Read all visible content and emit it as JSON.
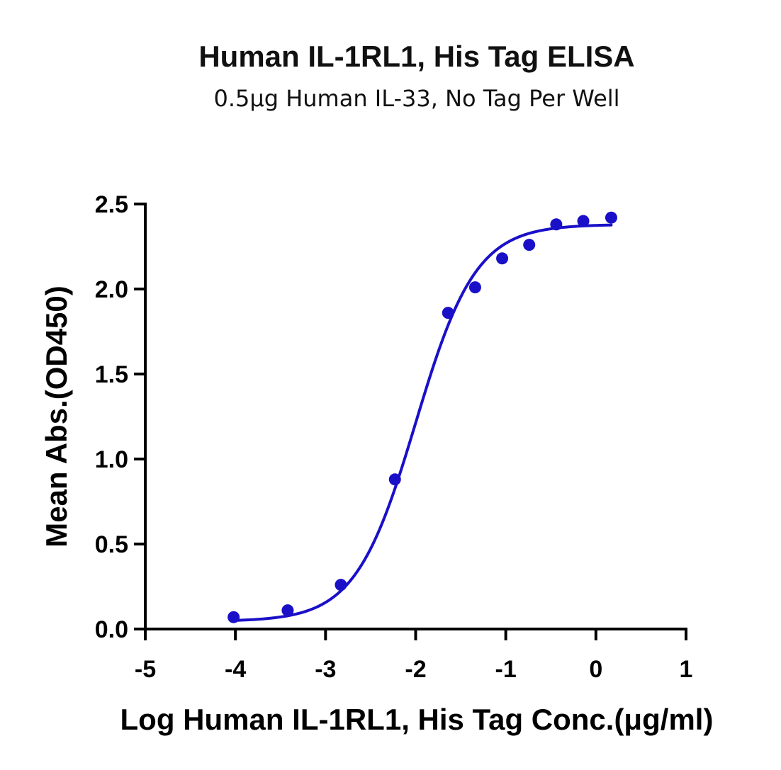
{
  "chart_data": {
    "type": "scatter",
    "title": "Human IL-1RL1, His Tag ELISA",
    "subtitle": "0.5μg Human IL-33, No Tag Per Well",
    "xlabel": "Log Human IL-1RL1, His Tag Conc.(μg/ml)",
    "ylabel": "Mean Abs.(OD450)",
    "xlim": [
      -5,
      1
    ],
    "ylim": [
      0,
      2.5
    ],
    "x_ticks": [
      -5,
      -4,
      -3,
      -2,
      -1,
      0,
      1
    ],
    "x_tick_labels": [
      "-5",
      "-4",
      "-3",
      "-2",
      "-1",
      "0",
      "1"
    ],
    "y_ticks": [
      0,
      0.5,
      1.0,
      1.5,
      2.0,
      2.5
    ],
    "y_tick_labels": [
      "0.0",
      "0.5",
      "1.0",
      "1.5",
      "2.0",
      "2.5"
    ],
    "grid": false,
    "legend": "none",
    "series": [
      {
        "x": [
          -4.02,
          -3.42,
          -2.83,
          -2.23,
          -1.64,
          -1.34,
          -1.04,
          -0.74,
          -0.44,
          -0.14,
          0.17
        ],
        "y": [
          0.07,
          0.11,
          0.26,
          0.88,
          1.86,
          2.01,
          2.18,
          2.26,
          2.38,
          2.4,
          2.42
        ],
        "color": "#1a10c8"
      }
    ],
    "fit_curve": {
      "model": "4PL",
      "bottom": 0.045,
      "top": 2.38,
      "log_ec50": -2.0,
      "hill_slope": 1.3,
      "x_range": [
        -4.02,
        0.17
      ],
      "color": "#1a10c8"
    }
  }
}
